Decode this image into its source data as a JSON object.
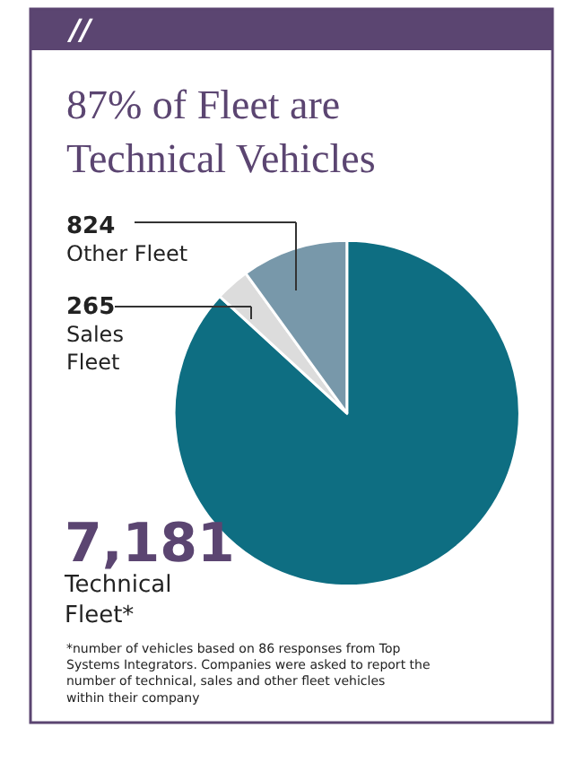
{
  "chart_data": {
    "type": "pie",
    "title": "87% of Fleet are Technical Vehicles",
    "categories": [
      "Technical Fleet*",
      "Sales Fleet",
      "Other Fleet"
    ],
    "values": [
      7181,
      265,
      824
    ],
    "value_labels": [
      "7,181",
      "265",
      "824"
    ],
    "colors": [
      "#0e6e82",
      "#dcdcdc",
      "#7898aa"
    ],
    "legend": false,
    "annotations": [
      "//",
      "*number of vehicles based on 86 responses from Top Systems Integrators. Companies were asked to report the number of technical, sales and other fleet vehicles within their company"
    ]
  }
}
